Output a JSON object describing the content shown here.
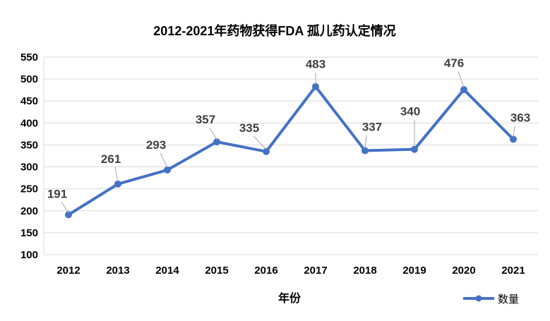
{
  "chart_data": {
    "type": "line",
    "title": "2012-2021年药物获得FDA 孤儿药认定情况",
    "xlabel": "年份",
    "ylabel": "",
    "categories": [
      "2012",
      "2013",
      "2014",
      "2015",
      "2016",
      "2017",
      "2018",
      "2019",
      "2020",
      "2021"
    ],
    "series": [
      {
        "name": "数量",
        "values": [
          191,
          261,
          293,
          357,
          335,
          483,
          337,
          340,
          476,
          363
        ],
        "color": "#4472C4"
      }
    ],
    "ylim": [
      100,
      550
    ],
    "yticks": [
      "100",
      "150",
      "200",
      "250",
      "300",
      "350",
      "400",
      "450",
      "500",
      "550"
    ],
    "grid": true,
    "legend_position": "bottom-right"
  }
}
